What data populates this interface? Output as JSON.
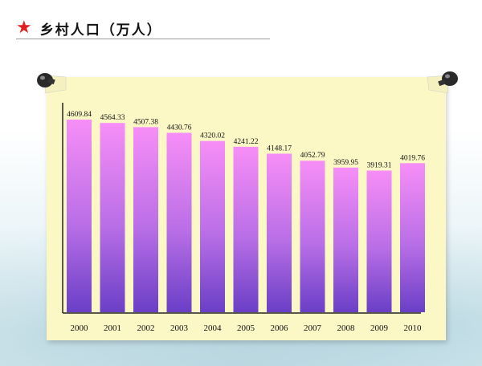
{
  "header": {
    "star_icon": "red-star-icon",
    "title": "乡村人口（万人）"
  },
  "colors": {
    "accent": "#e02020",
    "paper": "#fbf8c6",
    "bar_top": "#f78ef7",
    "bar_bottom": "#6a3fc6"
  },
  "chart_data": {
    "type": "bar",
    "categories": [
      "2000",
      "2001",
      "2002",
      "2003",
      "2004",
      "2005",
      "2006",
      "2007",
      "2008",
      "2009",
      "2010"
    ],
    "values": [
      4609.84,
      4564.33,
      4507.38,
      4430.76,
      4320.02,
      4241.22,
      4148.17,
      4052.79,
      3959.95,
      3919.31,
      4019.76
    ],
    "value_labels": [
      "4609.84",
      "4564.33",
      "4507.38",
      "4430.76",
      "4320.02",
      "4241.22",
      "4148.17",
      "4052.79",
      "3959.95",
      "3919.31",
      "4019.76"
    ],
    "title": "乡村人口（万人）",
    "xlabel": "",
    "ylabel": "",
    "ylim": [
      2000,
      4800
    ],
    "grid": false,
    "legend": "none"
  }
}
